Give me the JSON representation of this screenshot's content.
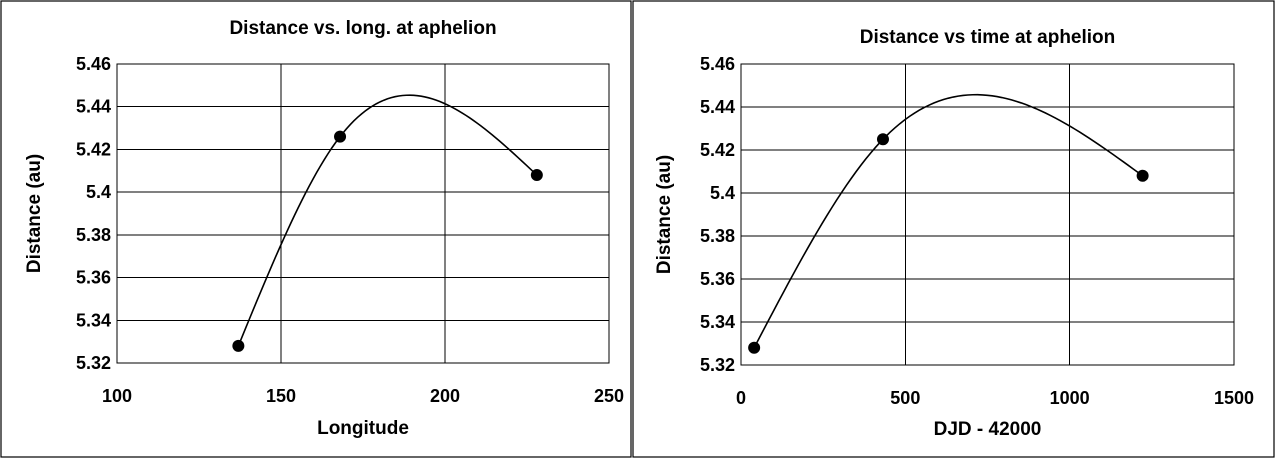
{
  "chart_data": [
    {
      "type": "scatter",
      "title": "Distance vs. long. at aphelion",
      "xlabel": "Longitude",
      "ylabel": "Distance (au)",
      "xlim": [
        100,
        250
      ],
      "ylim": [
        5.32,
        5.46
      ],
      "xticks": [
        100,
        150,
        200,
        250
      ],
      "yticks": [
        5.32,
        5.34,
        5.36,
        5.38,
        5.4,
        5.42,
        5.44,
        5.46
      ],
      "xtick_labels": [
        "100",
        "150",
        "200",
        "250"
      ],
      "ytick_labels": [
        "5.32",
        "5.34",
        "5.36",
        "5.38",
        "5.4",
        "5.42",
        "5.44",
        "5.46"
      ],
      "grid": true,
      "trendline": "smooth",
      "x": [
        137,
        168,
        228
      ],
      "y": [
        5.328,
        5.426,
        5.408
      ]
    },
    {
      "type": "scatter",
      "title": "Distance vs time at aphelion",
      "xlabel": "DJD - 42000",
      "ylabel": "Distance (au)",
      "xlim": [
        0,
        1500
      ],
      "ylim": [
        5.32,
        5.46
      ],
      "xticks": [
        0,
        500,
        1000,
        1500
      ],
      "yticks": [
        5.32,
        5.34,
        5.36,
        5.38,
        5.4,
        5.42,
        5.44,
        5.46
      ],
      "xtick_labels": [
        "0",
        "500",
        "1000",
        "1500"
      ],
      "ytick_labels": [
        "5.32",
        "5.34",
        "5.36",
        "5.38",
        "5.4",
        "5.42",
        "5.44",
        "5.46"
      ],
      "grid": true,
      "trendline": "smooth",
      "x": [
        40,
        432,
        1222
      ],
      "y": [
        5.328,
        5.425,
        5.408
      ]
    }
  ]
}
